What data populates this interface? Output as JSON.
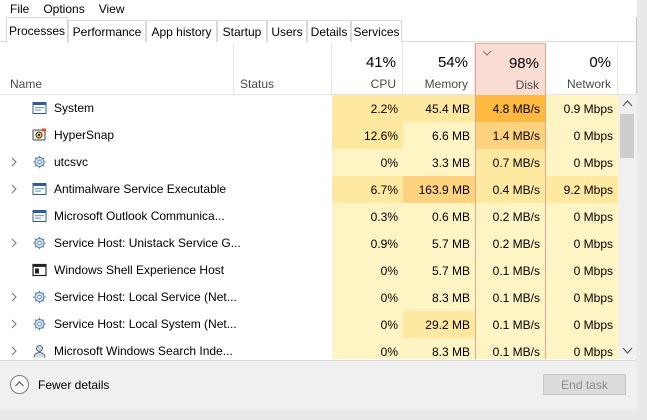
{
  "menu": [
    "File",
    "Options",
    "View"
  ],
  "tabs": [
    "Processes",
    "Performance",
    "App history",
    "Startup",
    "Users",
    "Details",
    "Services"
  ],
  "active_tab": "Processes",
  "columns": {
    "name": "Name",
    "status": "Status",
    "cpu": {
      "percent": "41%",
      "label": "CPU"
    },
    "memory": {
      "percent": "54%",
      "label": "Memory"
    },
    "disk": {
      "percent": "98%",
      "label": "Disk"
    },
    "network": {
      "percent": "0%",
      "label": "Network"
    }
  },
  "processes": [
    {
      "name": "System",
      "icon": "app-window-icon",
      "expandable": false,
      "cpu": "2.2%",
      "memory": "45.4 MB",
      "disk": "4.8 MB/s",
      "network": "0.9 Mbps"
    },
    {
      "name": "HyperSnap",
      "icon": "hypersnap-icon",
      "expandable": false,
      "cpu": "12.6%",
      "memory": "6.6 MB",
      "disk": "1.4 MB/s",
      "network": "0 Mbps"
    },
    {
      "name": "utcsvc",
      "icon": "gear-icon",
      "expandable": true,
      "cpu": "0%",
      "memory": "3.3 MB",
      "disk": "0.7 MB/s",
      "network": "0 Mbps"
    },
    {
      "name": "Antimalware Service Executable",
      "icon": "app-window-icon",
      "expandable": true,
      "cpu": "6.7%",
      "memory": "163.9 MB",
      "disk": "0.4 MB/s",
      "network": "9.2 Mbps"
    },
    {
      "name": "Microsoft Outlook Communica...",
      "icon": "app-window-icon",
      "expandable": false,
      "cpu": "0.3%",
      "memory": "0.6 MB",
      "disk": "0.2 MB/s",
      "network": "0 Mbps"
    },
    {
      "name": "Service Host: Unistack Service G...",
      "icon": "gear-icon",
      "expandable": true,
      "cpu": "0.9%",
      "memory": "5.7 MB",
      "disk": "0.2 MB/s",
      "network": "0 Mbps"
    },
    {
      "name": "Windows Shell Experience Host",
      "icon": "shell-window-icon",
      "expandable": false,
      "cpu": "0%",
      "memory": "5.7 MB",
      "disk": "0.1 MB/s",
      "network": "0 Mbps"
    },
    {
      "name": "Service Host: Local Service (Net...",
      "icon": "gear-icon",
      "expandable": true,
      "cpu": "0%",
      "memory": "8.3 MB",
      "disk": "0.1 MB/s",
      "network": "0 Mbps"
    },
    {
      "name": "Service Host: Local System (Net...",
      "icon": "gear-icon",
      "expandable": true,
      "cpu": "0%",
      "memory": "29.2 MB",
      "disk": "0.1 MB/s",
      "network": "0 Mbps"
    },
    {
      "name": "Microsoft Windows Search Inde...",
      "icon": "search-user-icon",
      "expandable": true,
      "cpu": "0%",
      "memory": "8.3 MB",
      "disk": "0.1 MB/s",
      "network": "0 Mbps"
    }
  ],
  "footer": {
    "fewer_details": "Fewer details",
    "end_task": "End task"
  },
  "colors": {
    "heat_low": "#fff4c4",
    "heat_mid": "#ffe8a0",
    "heat_high": "#ffd280",
    "heat_max": "#ffb941",
    "disk_header": "#f9dcd2",
    "disk_border": "#e9a38f"
  }
}
